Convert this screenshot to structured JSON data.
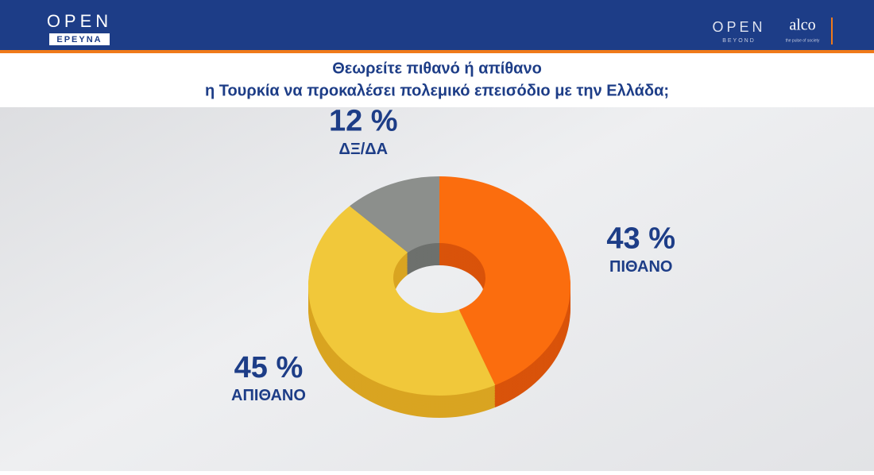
{
  "header": {
    "left_logo": "OPEN",
    "left_sub": "ΕΡΕΥΝΑ",
    "right_logo": "OPEN",
    "right_sub": "BEYOND",
    "partner": "alco",
    "partner_sub": "the pulse of society"
  },
  "chart_data": {
    "type": "pie",
    "title": [
      "Θεωρείτε πιθανό ή απίθανο",
      "η Τουρκία να προκαλέσει πολεμικό επεισόδιο με την Ελλάδα;"
    ],
    "categories": [
      "ΠΙΘΑΝΟ",
      "ΑΠΙΘΑΝΟ",
      "ΔΞ/ΔΑ"
    ],
    "values": [
      43,
      45,
      12
    ],
    "value_labels": [
      "43 %",
      "45 %",
      "12 %"
    ],
    "colors": [
      "#fb6d0e",
      "#f1c83a",
      "#8c8f8c"
    ],
    "side_colors": [
      "#d9530a",
      "#d9a421",
      "#6d706d"
    ]
  }
}
